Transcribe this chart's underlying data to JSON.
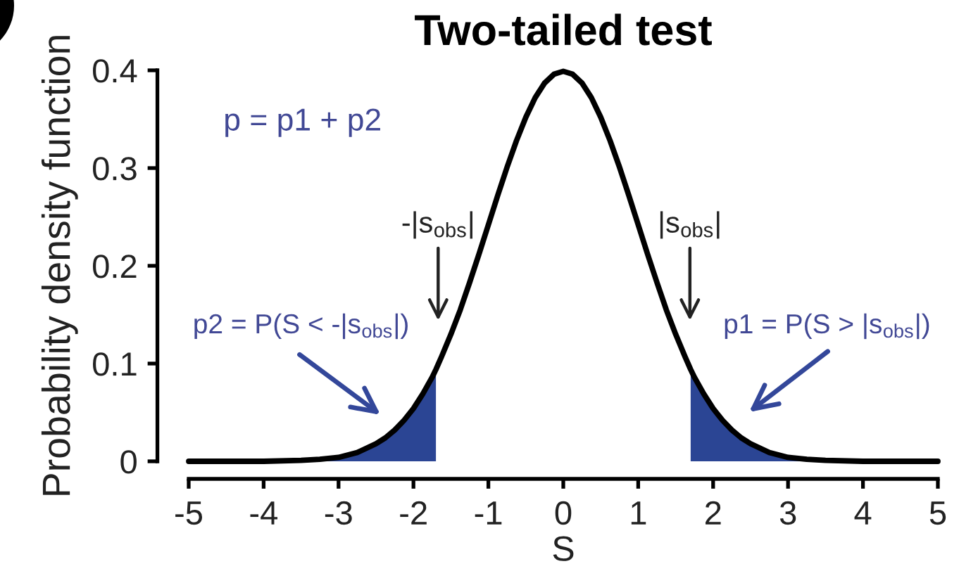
{
  "chart_data": {
    "type": "line",
    "title": "Two-tailed test",
    "xlabel": "S",
    "ylabel": "Probability density function",
    "series": [
      {
        "type": "area",
        "color": "#2b4594",
        "x": [
          -5,
          -4.5,
          -4,
          -3.5,
          -3.25,
          -3,
          -2.75,
          -2.5,
          -2.375,
          -2.25,
          -2.125,
          -2,
          -1.875,
          -1.75,
          -1.7
        ],
        "values": [
          0,
          0,
          0,
          0.001,
          0.002,
          0.004,
          0.009,
          0.018,
          0.024,
          0.032,
          0.042,
          0.054,
          0.069,
          0.086,
          0.094
        ]
      },
      {
        "type": "area",
        "color": "#2b4594",
        "x": [
          1.7,
          1.75,
          1.875,
          2,
          2.125,
          2.25,
          2.375,
          2.5,
          2.75,
          3,
          3.25,
          3.5,
          4,
          4.5,
          5
        ],
        "values": [
          0.094,
          0.086,
          0.069,
          0.054,
          0.042,
          0.032,
          0.024,
          0.018,
          0.009,
          0.004,
          0.002,
          0.001,
          0,
          0,
          0
        ]
      },
      {
        "color": "#000000",
        "x": [
          -5,
          -4.5,
          -4,
          -3.5,
          -3.25,
          -3,
          -2.75,
          -2.5,
          -2.375,
          -2.25,
          -2.125,
          -2,
          -1.875,
          -1.75,
          -1.7,
          -1.625,
          -1.5,
          -1.375,
          -1.25,
          -1.125,
          -1,
          -0.875,
          -0.75,
          -0.625,
          -0.5,
          -0.375,
          -0.25,
          -0.125,
          0,
          0.125,
          0.25,
          0.375,
          0.5,
          0.625,
          0.75,
          0.875,
          1,
          1.125,
          1.25,
          1.375,
          1.5,
          1.625,
          1.7,
          1.75,
          1.875,
          2,
          2.125,
          2.25,
          2.375,
          2.5,
          2.75,
          3,
          3.25,
          3.5,
          4,
          4.5,
          5
        ],
        "values": [
          0,
          0,
          0,
          0.001,
          0.002,
          0.004,
          0.009,
          0.018,
          0.024,
          0.032,
          0.042,
          0.054,
          0.069,
          0.086,
          0.094,
          0.107,
          0.13,
          0.155,
          0.183,
          0.212,
          0.242,
          0.272,
          0.301,
          0.328,
          0.352,
          0.372,
          0.387,
          0.396,
          0.399,
          0.396,
          0.387,
          0.372,
          0.352,
          0.328,
          0.301,
          0.272,
          0.242,
          0.212,
          0.183,
          0.155,
          0.13,
          0.107,
          0.094,
          0.086,
          0.069,
          0.054,
          0.042,
          0.032,
          0.024,
          0.018,
          0.009,
          0.004,
          0.002,
          0.001,
          0,
          0,
          0
        ]
      }
    ],
    "xlim": [
      -5,
      5
    ],
    "xticks": [
      -5,
      -4,
      -3,
      -2,
      -1,
      0,
      1,
      2,
      3,
      4,
      5
    ],
    "ylim": [
      0,
      0.4
    ],
    "yticks": [
      0,
      0.1,
      0.2,
      0.3,
      0.4
    ],
    "annotations": [
      "p = p1 + p2",
      "-|s$_{obs}$|",
      "|s$_{obs}$|",
      "p2 = P(S < -|s$_{obs}$|)",
      "p1 = P(S > |s$_{obs}$|)"
    ]
  }
}
